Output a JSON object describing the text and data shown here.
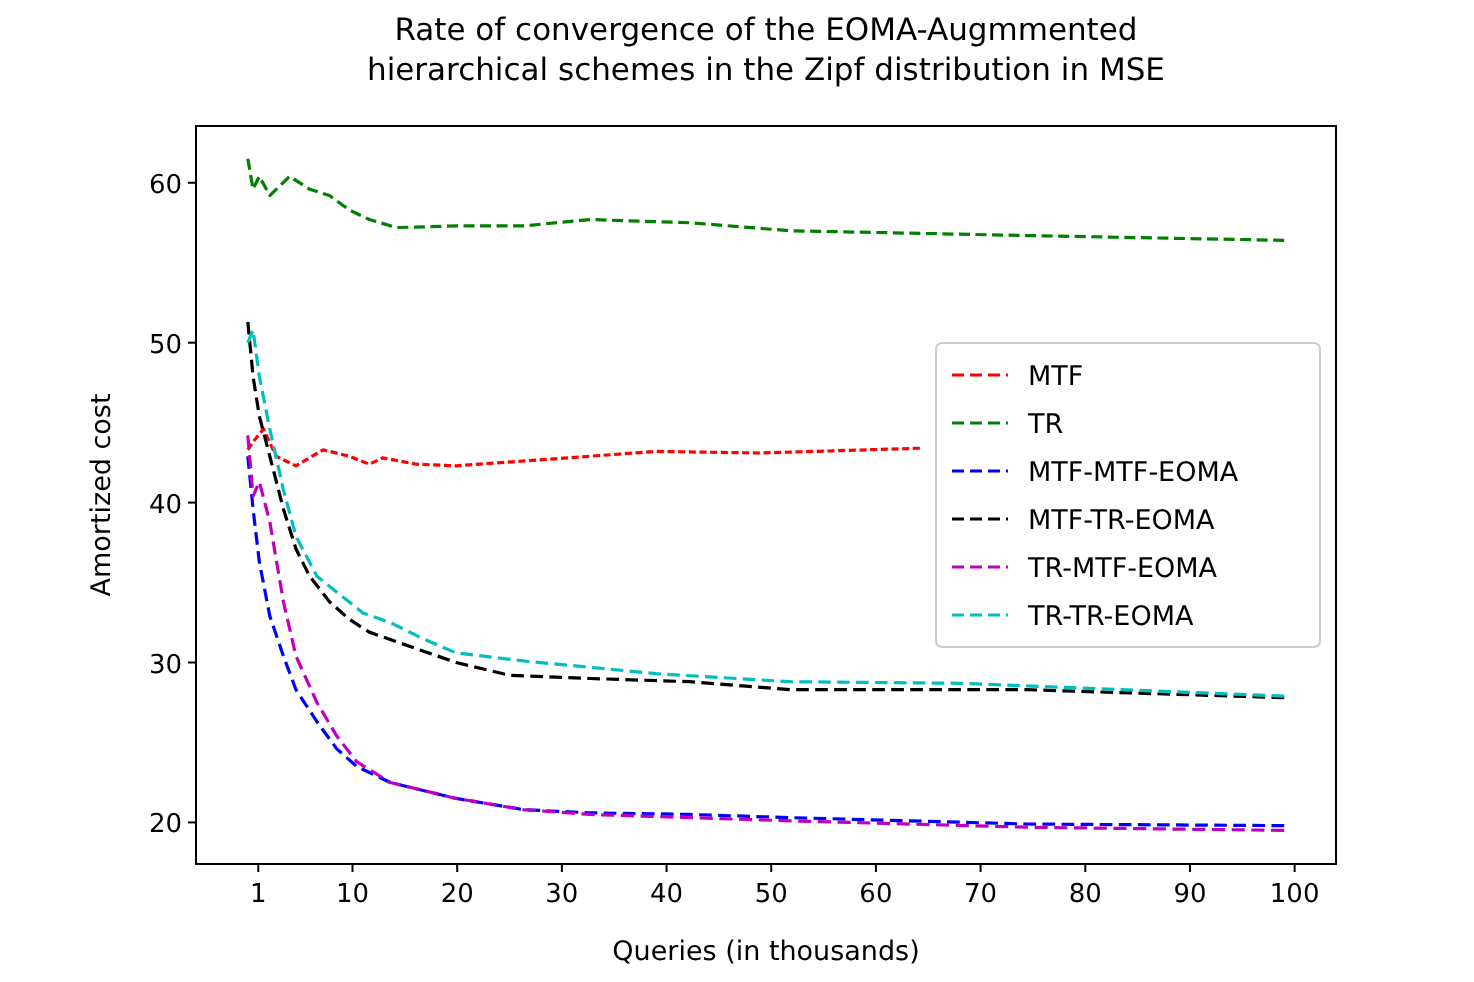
{
  "chart_data": {
    "type": "line",
    "title": "Rate of convergence of the EOMA-Augmmented\nhierarchical schemes in the Zipf distribution in MSE",
    "xlabel": "Queries (in thousands)",
    "ylabel": "Amortized cost",
    "xlim": [
      -4.95,
      103.95
    ],
    "ylim": [
      17.4,
      63.55
    ],
    "xticks": [
      1,
      10,
      20,
      30,
      40,
      50,
      60,
      70,
      80,
      90,
      100
    ],
    "yticks": [
      20,
      30,
      40,
      50,
      60
    ],
    "legend": "right",
    "line_style": "dashed",
    "grid": false,
    "series": [
      {
        "name": "MTF",
        "color": "#ff0000",
        "x": [
          0,
          0.5,
          1.5,
          2.7,
          4.6,
          7.2,
          9.7,
          11.6,
          12.9,
          16.1,
          19.9,
          26.3,
          32.7,
          39,
          48.9,
          64.2
        ],
        "values": [
          43.3,
          43.8,
          44.6,
          42.9,
          42.3,
          43.3,
          42.9,
          42.4,
          42.8,
          42.4,
          42.3,
          42.6,
          42.9,
          43.2,
          43.1,
          43.4
        ]
      },
      {
        "name": "TR",
        "color": "#008000",
        "x": [
          0,
          0.5,
          1.1,
          2.1,
          4,
          5.9,
          7.8,
          9.7,
          11.6,
          14.2,
          19.9,
          26.3,
          32.7,
          42.2,
          51.8,
          74.4,
          99
        ],
        "values": [
          61.5,
          59.6,
          60.4,
          59.2,
          60.4,
          59.6,
          59.2,
          58.3,
          57.7,
          57.2,
          57.3,
          57.3,
          57.7,
          57.5,
          57,
          56.7,
          56.4
        ]
      },
      {
        "name": "MTF-MTF-EOMA",
        "color": "#0000ff",
        "x": [
          0,
          0.5,
          1.1,
          2.1,
          3.4,
          4.6,
          6.6,
          8.5,
          10.4,
          13.6,
          19.9,
          26.3,
          32.7,
          42.2,
          51.8,
          74.4,
          99
        ],
        "values": [
          42.9,
          39.6,
          36.3,
          32.9,
          30.4,
          28.3,
          26.3,
          24.6,
          23.5,
          22.5,
          21.5,
          20.8,
          20.6,
          20.5,
          20.3,
          19.9,
          19.8
        ]
      },
      {
        "name": "MTF-TR-EOMA",
        "color": "#000000",
        "x": [
          0,
          0.5,
          1.1,
          2.1,
          3.4,
          4.6,
          5.9,
          7.8,
          9.7,
          11.6,
          15.5,
          19.9,
          25,
          32.7,
          42.2,
          51.8,
          74.4,
          99
        ],
        "values": [
          51.3,
          47.9,
          45.4,
          42.9,
          39.6,
          37.1,
          35.4,
          33.8,
          32.7,
          31.9,
          31,
          30,
          29.2,
          29,
          28.8,
          28.3,
          28.3,
          27.8
        ]
      },
      {
        "name": "TR-MTF-EOMA",
        "color": "#bf00bf",
        "x": [
          0,
          0.5,
          1.1,
          2.1,
          3.4,
          4.6,
          6.6,
          8.5,
          10.4,
          13.6,
          19.9,
          26.3,
          32.7,
          42.2,
          51.8,
          74.4,
          99
        ],
        "values": [
          44.2,
          40.4,
          41.3,
          38.8,
          33.8,
          30.4,
          27.5,
          25.4,
          23.8,
          22.5,
          21.5,
          20.8,
          20.5,
          20.3,
          20.1,
          19.7,
          19.5
        ]
      },
      {
        "name": "TR-TR-EOMA",
        "color": "#00bfbf",
        "x": [
          0,
          0.5,
          1.1,
          2.1,
          3.4,
          4.6,
          6.6,
          8.5,
          11,
          13.6,
          16.7,
          19.9,
          26.3,
          32.7,
          39,
          51.8,
          68.1,
          99
        ],
        "values": [
          50,
          50.8,
          47.9,
          44.6,
          40.8,
          37.9,
          35.4,
          34.4,
          33.1,
          32.5,
          31.5,
          30.6,
          30.1,
          29.7,
          29.3,
          28.8,
          28.7,
          27.9
        ]
      }
    ]
  }
}
